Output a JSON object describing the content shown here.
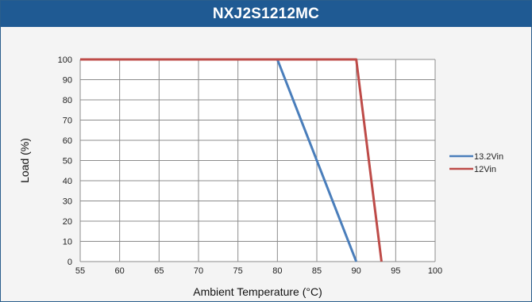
{
  "title": "NXJ2S1212MC",
  "colors": {
    "header_bg": "#1f5a93",
    "series_13_2": "#4a7ebb",
    "series_12": "#be4b48",
    "grid": "#8c8c8c"
  },
  "chart_data": {
    "type": "line",
    "title": "NXJ2S1212MC",
    "xlabel": "Ambient Temperature (°C)",
    "ylabel": "Load (%)",
    "xlim": [
      55,
      100
    ],
    "ylim": [
      0,
      100
    ],
    "x_ticks": [
      55,
      60,
      65,
      70,
      75,
      80,
      85,
      90,
      95,
      100
    ],
    "y_ticks": [
      0,
      10,
      20,
      30,
      40,
      50,
      60,
      70,
      80,
      90,
      100
    ],
    "grid": true,
    "legend_position": "right",
    "series": [
      {
        "name": "13.2Vin",
        "color": "#4a7ebb",
        "x": [
          55,
          80,
          90
        ],
        "y": [
          100,
          100,
          0
        ]
      },
      {
        "name": "12Vin",
        "color": "#be4b48",
        "x": [
          55,
          90,
          93.2
        ],
        "y": [
          100,
          100,
          0
        ]
      }
    ]
  }
}
